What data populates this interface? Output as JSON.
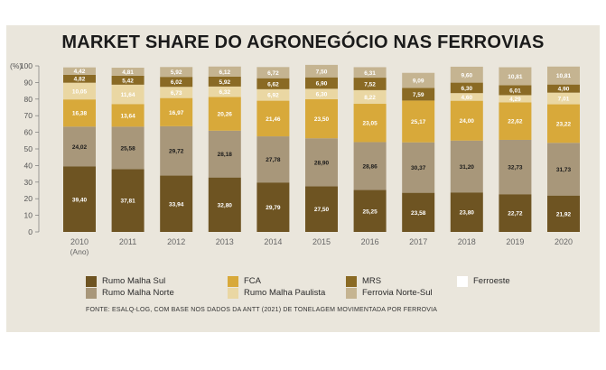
{
  "chart_data": {
    "type": "bar",
    "title": "MARKET SHARE DO AGRONEGÓCIO NAS FERROVIAS",
    "ylabel": "(%)",
    "xlabel": "(Ano)",
    "ylim": [
      0,
      100
    ],
    "yticks": [
      "0",
      "10",
      "20",
      "30",
      "40",
      "50",
      "60",
      "70",
      "80",
      "90",
      "100"
    ],
    "categories": [
      "2010",
      "2011",
      "2012",
      "2013",
      "2014",
      "2015",
      "2016",
      "2017",
      "2018",
      "2019",
      "2020"
    ],
    "series": [
      {
        "name": "Rumo Malha Sul",
        "color": "#6e5422",
        "label_color": "#ffffff",
        "values": [
          39.4,
          37.81,
          33.94,
          32.8,
          29.79,
          27.5,
          25.25,
          23.58,
          23.8,
          22.72,
          21.92
        ],
        "labels": [
          "39,40",
          "37,81",
          "33,94",
          "32,80",
          "29,79",
          "27,50",
          "25,25",
          "23,58",
          "23,80",
          "22,72",
          "21,92"
        ]
      },
      {
        "name": "Rumo Malha Norte",
        "color": "#a8977a",
        "label_color": "#1a1a1a",
        "values": [
          24.02,
          25.58,
          29.72,
          28.18,
          27.78,
          28.9,
          28.86,
          30.37,
          31.2,
          32.73,
          31.73
        ],
        "labels": [
          "24,02",
          "25,58",
          "29,72",
          "28,18",
          "27,78",
          "28,90",
          "28,86",
          "30,37",
          "31,20",
          "32,73",
          "31,73"
        ]
      },
      {
        "name": "FCA",
        "color": "#d8a93a",
        "label_color": "#ffffff",
        "values": [
          16.38,
          13.64,
          16.97,
          20.26,
          21.46,
          23.5,
          23.05,
          25.17,
          24.0,
          22.62,
          23.22
        ],
        "labels": [
          "16,38",
          "13,64",
          "16,97",
          "20,26",
          "21,46",
          "23,50",
          "23,05",
          "25,17",
          "24,00",
          "22,62",
          "23,22"
        ]
      },
      {
        "name": "Rumo Malha Paulista",
        "color": "#ead7a3",
        "label_color": "#ffffff",
        "values": [
          10.05,
          11.64,
          6.73,
          6.32,
          6.92,
          6.3,
          8.22,
          0,
          4.6,
          4.29,
          7.01
        ],
        "labels": [
          "10,05",
          "11,64",
          "6,73",
          "6,32",
          "6,92",
          "6,30",
          "8,22",
          "",
          "4,60",
          "4,29",
          "7,01"
        ]
      },
      {
        "name": "MRS",
        "color": "#8a6a24",
        "label_color": "#ffffff",
        "values": [
          4.82,
          5.42,
          6.02,
          5.92,
          6.62,
          6.9,
          7.52,
          7.59,
          6.3,
          6.01,
          4.9
        ],
        "labels": [
          "4,82",
          "5,42",
          "6,02",
          "5,92",
          "6,62",
          "6,90",
          "7,52",
          "7,59",
          "6,30",
          "6,01",
          "4,90"
        ]
      },
      {
        "name": "Ferrovia Norte-Sul",
        "color": "#c5b491",
        "label_color": "#ffffff",
        "values": [
          4.42,
          4.81,
          5.92,
          6.12,
          6.72,
          7.5,
          6.31,
          9.09,
          9.6,
          10.81,
          10.81
        ],
        "labels": [
          "4,42",
          "4,81",
          "5,92",
          "6,12",
          "6,72",
          "7,50",
          "6,31",
          "9,09",
          "9,60",
          "10,81",
          "10,81"
        ]
      },
      {
        "name": "Ferroeste",
        "color": "#ffffff",
        "label_color": "#1a1a1a",
        "values": [
          0,
          0,
          0,
          0,
          0,
          0,
          0,
          0,
          0,
          0,
          0
        ],
        "labels": [
          "",
          "",
          "",
          "",
          "",
          "",
          "",
          "",
          "",
          "",
          ""
        ]
      }
    ],
    "legend_order": [
      "Rumo Malha Sul",
      "FCA",
      "MRS",
      "Ferroeste",
      "Rumo Malha Norte",
      "Rumo Malha Paulista",
      "Ferrovia Norte-Sul"
    ],
    "legend_placement": "bottom",
    "grid": false
  },
  "source": "FONTE: ESALQ-LOG, COM BASE NOS DADOS DA ANTT (2021) DE TONELAGEM MOVIMENTADA POR FERROVIA"
}
